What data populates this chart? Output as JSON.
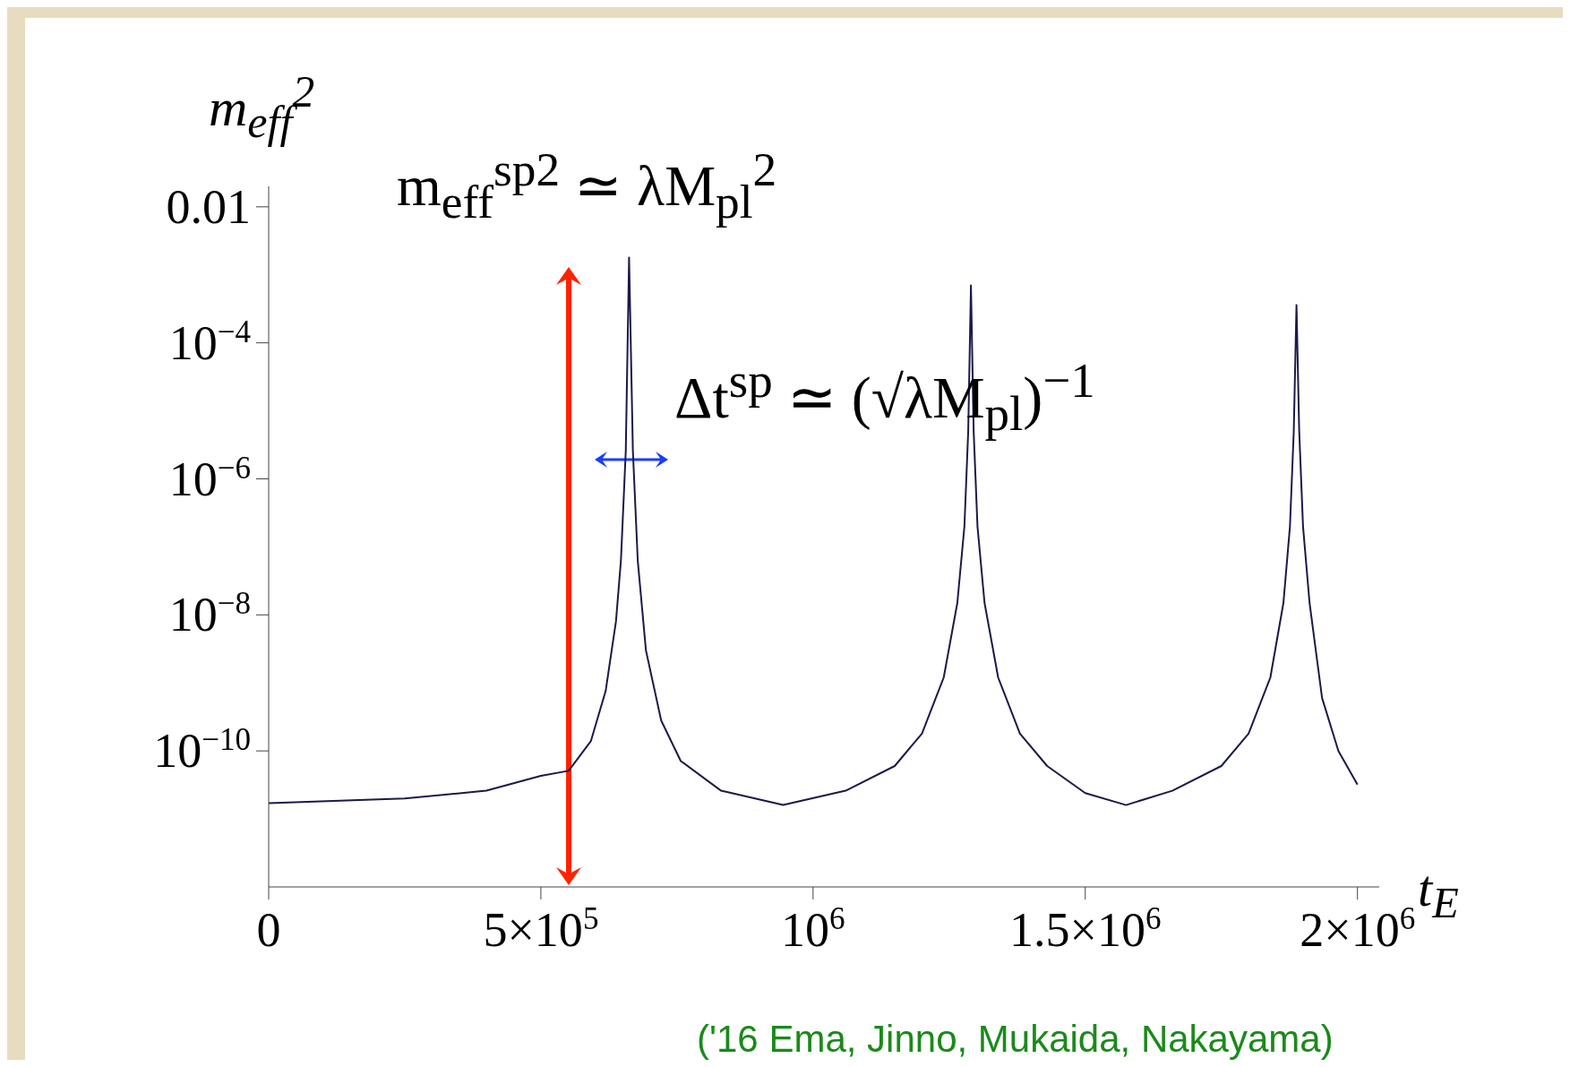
{
  "chart_data": {
    "type": "line",
    "xlabel": "t$_{E}$",
    "ylabel": "m$_{eff}$$^{2}$",
    "log": "y",
    "color": "#1a1a4a",
    "marker": "none",
    "line_style": "solid",
    "xlim": [
      0,
      2040000
    ],
    "ylim": [
      1e-12,
      0.02
    ],
    "xticks": [
      0,
      {
        "value": 500000,
        "label": "5×10$^{5}$"
      },
      {
        "value": 1000000,
        "label": "10$^{6}$"
      },
      {
        "value": 1500000,
        "label": "1.5×10$^{6}$"
      },
      {
        "value": 2000000,
        "label": "2×10$^{6}$"
      }
    ],
    "yticks": [
      {
        "value": 0.01,
        "label": "0.01"
      },
      {
        "value": 0.0001,
        "label": "10$^{−4}$"
      },
      {
        "value": 1e-06,
        "label": "10$^{−6}$"
      },
      {
        "value": 1e-08,
        "label": "10$^{−8}$"
      },
      {
        "value": 1e-10,
        "label": "10$^{−10}$"
      }
    ],
    "x": [
      0,
      250000,
      400000,
      500000,
      551000,
      592000,
      619000,
      638000,
      647000,
      656000,
      662000,
      669000,
      678000,
      693000,
      721000,
      757000,
      831000,
      945000,
      1060000,
      1150000,
      1200000,
      1240000,
      1265000,
      1278000,
      1285000,
      1290000,
      1295000,
      1302000,
      1315000,
      1340000,
      1380000,
      1430000,
      1500000,
      1575000,
      1660000,
      1750000,
      1800000,
      1840000,
      1864000,
      1876000,
      1883000,
      1888000,
      1893000,
      1900000,
      1912000,
      1935000,
      1965000,
      2000000
    ],
    "values": [
      1.7e-11,
      2e-11,
      2.6e-11,
      4.3e-11,
      5.1e-11,
      1.4e-10,
      7.6e-10,
      8.1e-09,
      6.2e-08,
      2.6e-06,
      0.0018,
      2.6e-06,
      6.2e-08,
      3e-09,
      2.8e-10,
      7.1e-11,
      2.6e-11,
      1.6e-11,
      2.6e-11,
      6e-11,
      1.8e-10,
      1.2e-09,
      1.5e-08,
      2e-07,
      5e-06,
      0.0007,
      5e-06,
      2e-07,
      1.5e-08,
      1.2e-09,
      1.8e-10,
      6e-11,
      2.4e-11,
      1.6e-11,
      2.6e-11,
      6e-11,
      1.8e-10,
      1.2e-09,
      1.5e-08,
      2e-07,
      5e-06,
      0.00036,
      5e-06,
      2e-07,
      1.5e-08,
      6e-10,
      1e-10,
      3.2e-11
    ],
    "annotations": [
      "m$_{eff}$$^{sp2}$ ≃ λM$_{pl}$$^{2}$",
      "Δt$^{sp}$ ≃ (√λM$_{pl}$)$^{−1}$",
      "('16 Ema, Jinno, Mukaida, Nakayama)"
    ]
  }
}
